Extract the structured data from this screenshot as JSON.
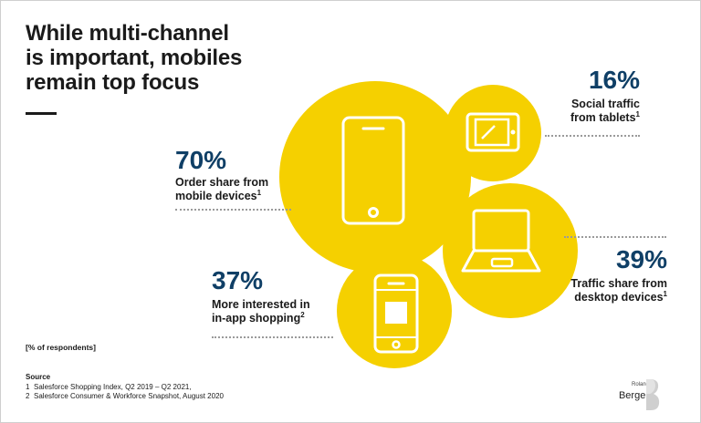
{
  "title": {
    "line1": "While multi-channel",
    "line2": "is important, mobiles",
    "line3": "remain top focus"
  },
  "colors": {
    "yellow": "#f5d000",
    "navy": "#0f3f66",
    "text": "#1a1a1a",
    "dots": "#9a9a9a"
  },
  "stats": [
    {
      "id": "mobile",
      "value": "70%",
      "label_line1": "Order share from",
      "label_line2": "mobile devices",
      "footnote": "1",
      "icon": "smartphone-icon"
    },
    {
      "id": "tablet",
      "value": "16%",
      "label_line1": "Social traffic",
      "label_line2": "from tablets",
      "footnote": "1",
      "icon": "tablet-icon"
    },
    {
      "id": "desktop",
      "value": "39%",
      "label_line1": "Traffic share from",
      "label_line2": "desktop devices",
      "footnote": "1",
      "icon": "laptop-icon"
    },
    {
      "id": "inapp",
      "value": "37%",
      "label_line1": "More interested in",
      "label_line2": "in-app shopping",
      "footnote": "2",
      "icon": "app-phone-icon"
    }
  ],
  "note": "[% of respondents]",
  "source": {
    "heading": "Source",
    "items": [
      {
        "num": "1",
        "text": "Salesforce Shopping Index, Q2 2019 – Q2 2021,"
      },
      {
        "num": "2",
        "text": "Salesforce Consumer & Workforce Snapshot, August 2020"
      }
    ]
  },
  "logo": {
    "small": "Roland",
    "big": "Berger"
  }
}
